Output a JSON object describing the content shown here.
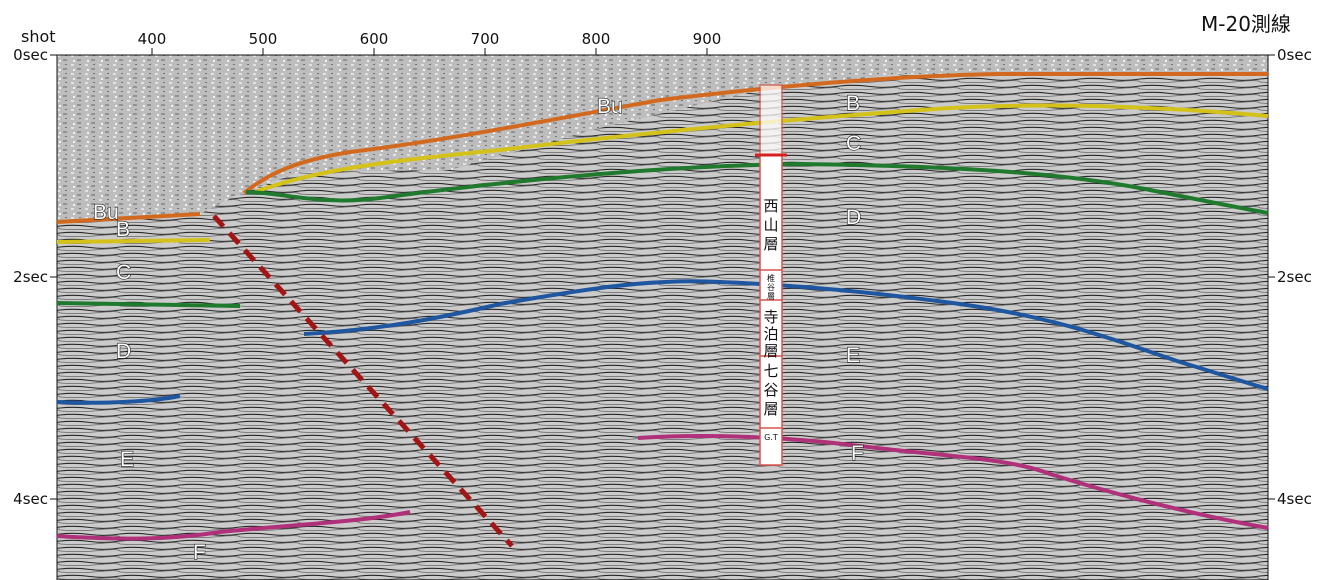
{
  "title": "M-20測線",
  "shot_axis": {
    "label": "shot",
    "ticks": [
      "400",
      "500",
      "600",
      "700",
      "800",
      "900"
    ]
  },
  "time_axis": {
    "ticks": [
      "0sec",
      "2sec",
      "4sec"
    ]
  },
  "layer_labels": {
    "bu_right": "Bu",
    "b_right": "B",
    "c_right": "C",
    "d_right": "D",
    "e_right": "E",
    "f_right": "F",
    "bu_left": "Bu",
    "b_left": "B",
    "c_left": "C",
    "d_left": "D",
    "e_left": "E",
    "f_left": "F"
  },
  "stratigraphic_column": {
    "units": [
      "西山層",
      "椎谷層",
      "寺泊層",
      "七谷層",
      "G.T"
    ]
  },
  "colors": {
    "horizon_bu": "#d2691e",
    "horizon_c": "#d4c21a",
    "horizon_d": "#1f7a2e",
    "horizon_e": "#1e56a0",
    "horizon_f": "#b0307a",
    "fault": "#a31515",
    "column_border": "#d9534f"
  }
}
